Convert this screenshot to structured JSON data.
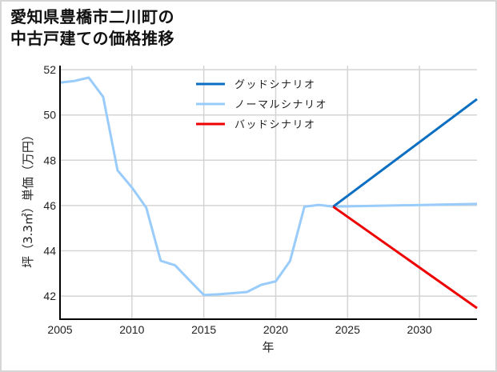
{
  "title": {
    "line1": "愛知県豊橋市二川町の",
    "line2": "中古戸建ての価格推移"
  },
  "colors": {
    "good": "#0a6fc2",
    "normal": "#99ccfa",
    "bad": "#ee0000",
    "grid": "#d4d4d4",
    "axis": "#000000",
    "border": "#d6d6d6"
  },
  "chart_data": {
    "type": "line",
    "title": "愛知県豊橋市二川町の中古戸建ての価格推移",
    "xlabel": "年",
    "ylabel": "坪（3.3㎡）単価（万円）",
    "xlim": [
      2005,
      2034
    ],
    "ylim": [
      40.98,
      52.18
    ],
    "x_ticks": [
      2005,
      2010,
      2015,
      2020,
      2025,
      2030
    ],
    "y_ticks": [
      42,
      44,
      46,
      48,
      50,
      52
    ],
    "grid": true,
    "legend_position": "upper center",
    "series": [
      {
        "name": "グッドシナリオ",
        "color": "#0a6fc2",
        "x": [
          2024,
          2034
        ],
        "values": [
          45.95,
          50.7
        ]
      },
      {
        "name": "ノーマルシナリオ",
        "color": "#99ccfa",
        "x": [
          2005,
          2006,
          2007,
          2008,
          2009,
          2010,
          2011,
          2012,
          2013,
          2014,
          2015,
          2016,
          2017,
          2018,
          2019,
          2020,
          2021,
          2022,
          2023,
          2024,
          2034
        ],
        "values": [
          51.43,
          51.5,
          51.65,
          50.8,
          47.55,
          46.8,
          45.9,
          43.56,
          43.36,
          42.7,
          42.05,
          42.08,
          42.13,
          42.18,
          42.5,
          42.65,
          43.55,
          45.95,
          46.03,
          45.95,
          46.07
        ]
      },
      {
        "name": "バッドシナリオ",
        "color": "#ee0000",
        "x": [
          2024,
          2034
        ],
        "values": [
          45.95,
          41.47
        ]
      }
    ]
  }
}
